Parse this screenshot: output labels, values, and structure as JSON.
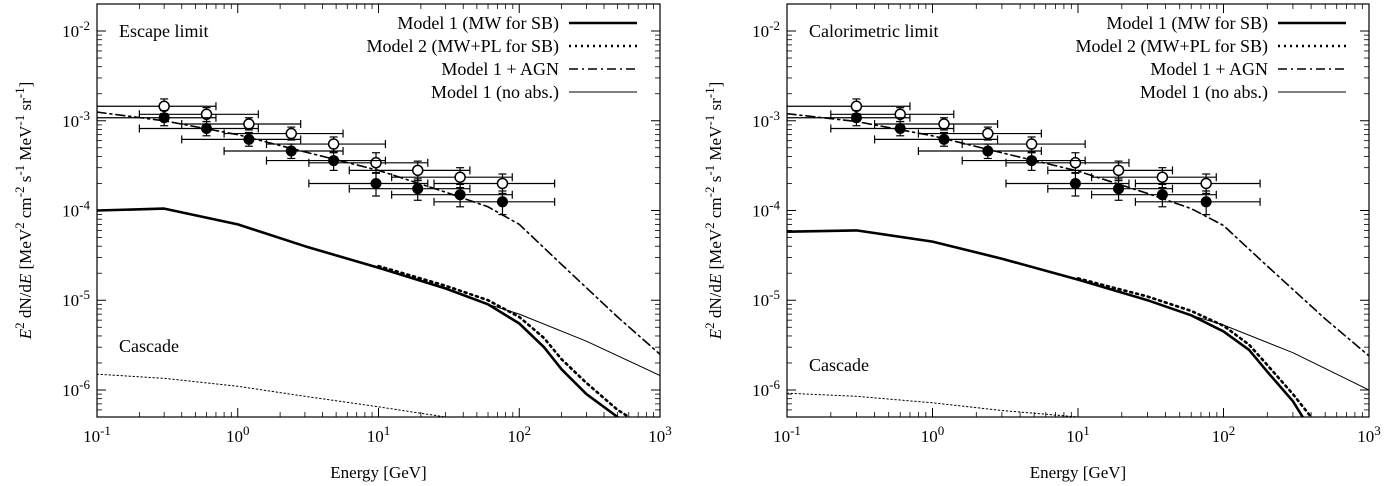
{
  "chart_data": [
    {
      "type": "line",
      "xscale": "log",
      "yscale": "log",
      "xlim": [
        0.1,
        1000
      ],
      "ylim": [
        5e-07,
        0.02
      ],
      "xlabel": "Energy [GeV]",
      "ylabel": "E2 dN/dE [MeV2 cm-2 s-1 MeV-1 sr-1]",
      "x_ticks": [
        "10-1",
        "100",
        "101",
        "102",
        "103"
      ],
      "y_ticks": [
        "10-6",
        "10-5",
        "10-4",
        "10-3",
        "10-2"
      ],
      "panel_label": "Escape limit",
      "cascade_label": "Cascade",
      "legend_position": "top-right",
      "series": [
        {
          "name": "Model 1 (MW for SB)",
          "style": "solid-thick",
          "x": [
            0.1,
            0.3,
            1,
            3,
            10,
            30,
            60,
            100,
            150,
            200,
            300,
            500
          ],
          "y": [
            0.0001,
            0.000105,
            7e-05,
            4e-05,
            2.3e-05,
            1.35e-05,
            9e-06,
            5.5e-06,
            3e-06,
            1.7e-06,
            9e-07,
            5e-07
          ]
        },
        {
          "name": "Model 2 (MW+PL for SB)",
          "style": "dotted-thick",
          "x": [
            10,
            30,
            60,
            100,
            150,
            200,
            300,
            500,
            600
          ],
          "y": [
            2.4e-05,
            1.45e-05,
            1e-05,
            6.5e-06,
            3.8e-06,
            2.2e-06,
            1.2e-06,
            6e-07,
            5e-07
          ]
        },
        {
          "name": "Model 1 + AGN",
          "style": "dash-dot",
          "x": [
            0.1,
            0.3,
            1,
            3,
            10,
            30,
            60,
            100,
            200,
            500,
            1000
          ],
          "y": [
            0.00125,
            0.001,
            0.0007,
            0.00045,
            0.00028,
            0.00016,
            0.00011,
            7e-05,
            2.5e-05,
            6.5e-06,
            2.5e-06
          ]
        },
        {
          "name": "Model 1 (no abs.)",
          "style": "solid-thin",
          "x": [
            10,
            30,
            60,
            100,
            300,
            1000
          ],
          "y": [
            2.3e-05,
            1.35e-05,
            9e-06,
            7e-06,
            3.5e-06,
            1.45e-06
          ]
        },
        {
          "name": "Cascade",
          "style": "dotted-thin",
          "legend": false,
          "x": [
            0.1,
            0.3,
            1,
            3,
            10,
            20,
            30
          ],
          "y": [
            1.5e-06,
            1.35e-06,
            1.1e-06,
            8.5e-07,
            6.5e-07,
            5.5e-07,
            5e-07
          ]
        }
      ],
      "data_points": [
        {
          "name": "open circles",
          "marker": "open-circle",
          "x": [
            0.3,
            0.6,
            1.2,
            2.4,
            4.8,
            9.6,
            19,
            38,
            76
          ],
          "y": [
            0.00145,
            0.00118,
            0.00092,
            0.00072,
            0.00055,
            0.00034,
            0.00028,
            0.000235,
            0.0002
          ],
          "err_low": [
            0.0012,
            0.00098,
            0.00079,
            0.00061,
            0.00045,
            0.000265,
            0.000215,
            0.00018,
            0.000155
          ],
          "err_high": [
            0.00175,
            0.0014,
            0.00108,
            0.00085,
            0.00066,
            0.00044,
            0.000355,
            0.0003,
            0.000255
          ],
          "xerr_low": [
            0.2,
            0.4,
            0.8,
            1.6,
            3.2,
            6.4,
            12.8,
            25.6,
            51.2
          ],
          "xerr_high": [
            0.4,
            0.8,
            1.6,
            3.2,
            6.4,
            12.8,
            25.6,
            51.2,
            102.4
          ]
        },
        {
          "name": "filled circles",
          "marker": "filled-circle",
          "x": [
            0.3,
            0.6,
            1.2,
            2.4,
            4.8,
            9.6,
            19,
            38,
            76
          ],
          "y": [
            0.00108,
            0.00082,
            0.00062,
            0.00046,
            0.00036,
            0.0002,
            0.000175,
            0.00015,
            0.000125
          ],
          "err_low": [
            0.00088,
            0.00068,
            0.00052,
            0.00038,
            0.00028,
            0.000145,
            0.00013,
            0.00011,
            9e-05
          ],
          "err_high": [
            0.0013,
            0.00098,
            0.00074,
            0.00055,
            0.00044,
            0.00026,
            0.000225,
            0.000195,
            0.000165
          ],
          "xerr_low": [
            0.2,
            0.4,
            0.8,
            1.6,
            3.2,
            6.4,
            12.8,
            25.6,
            51.2
          ],
          "xerr_high": [
            0.4,
            0.8,
            1.6,
            3.2,
            6.4,
            12.8,
            25.6,
            51.2,
            102.4
          ]
        }
      ]
    },
    {
      "type": "line",
      "xscale": "log",
      "yscale": "log",
      "xlim": [
        0.1,
        1000
      ],
      "ylim": [
        5e-07,
        0.02
      ],
      "xlabel": "Energy [GeV]",
      "ylabel": "E2 dN/dE [MeV2 cm-2 s-1 MeV-1 sr-1]",
      "x_ticks": [
        "10-1",
        "100",
        "101",
        "102",
        "103"
      ],
      "y_ticks": [
        "10-6",
        "10-5",
        "10-4",
        "10-3",
        "10-2"
      ],
      "panel_label": "Calorimetric limit",
      "cascade_label": "Cascade",
      "legend_position": "top-right",
      "series": [
        {
          "name": "Model 1 (MW for SB)",
          "style": "solid-thick",
          "x": [
            0.1,
            0.3,
            1,
            3,
            10,
            30,
            60,
            100,
            150,
            200,
            300,
            350
          ],
          "y": [
            5.8e-05,
            6e-05,
            4.5e-05,
            2.9e-05,
            1.7e-05,
            1e-05,
            6.8e-06,
            4.5e-06,
            2.8e-06,
            1.6e-06,
            7.5e-07,
            5e-07
          ]
        },
        {
          "name": "Model 2 (MW+PL for SB)",
          "style": "dotted-thick",
          "x": [
            10,
            30,
            60,
            100,
            150,
            200,
            300,
            400
          ],
          "y": [
            1.75e-05,
            1.1e-05,
            7.6e-06,
            5.2e-06,
            3.2e-06,
            1.9e-06,
            9e-07,
            5e-07
          ]
        },
        {
          "name": "Model 1 + AGN",
          "style": "dash-dot",
          "x": [
            0.1,
            0.3,
            1,
            3,
            10,
            30,
            60,
            100,
            200,
            500,
            1000
          ],
          "y": [
            0.0012,
            0.00098,
            0.00068,
            0.00044,
            0.000275,
            0.000155,
            0.000105,
            6.8e-05,
            2.4e-05,
            6.2e-06,
            2.4e-06
          ]
        },
        {
          "name": "Model 1 (no abs.)",
          "style": "solid-thin",
          "x": [
            10,
            30,
            60,
            100,
            300,
            1000
          ],
          "y": [
            1.7e-05,
            1e-05,
            6.8e-06,
            5.3e-06,
            2.6e-06,
            1e-06
          ]
        },
        {
          "name": "Cascade",
          "style": "dotted-thin",
          "legend": false,
          "x": [
            0.1,
            0.3,
            1,
            3,
            10
          ],
          "y": [
            9.2e-07,
            8.5e-07,
            7.2e-07,
            5.9e-07,
            5e-07
          ]
        }
      ],
      "data_points": [
        {
          "name": "open circles",
          "marker": "open-circle",
          "x": [
            0.3,
            0.6,
            1.2,
            2.4,
            4.8,
            9.6,
            19,
            38,
            76
          ],
          "y": [
            0.00145,
            0.00118,
            0.00092,
            0.00072,
            0.00055,
            0.00034,
            0.00028,
            0.000235,
            0.0002
          ],
          "err_low": [
            0.0012,
            0.00098,
            0.00079,
            0.00061,
            0.00045,
            0.000265,
            0.000215,
            0.00018,
            0.000155
          ],
          "err_high": [
            0.00175,
            0.0014,
            0.00108,
            0.00085,
            0.00066,
            0.00044,
            0.000355,
            0.0003,
            0.000255
          ],
          "xerr_low": [
            0.2,
            0.4,
            0.8,
            1.6,
            3.2,
            6.4,
            12.8,
            25.6,
            51.2
          ],
          "xerr_high": [
            0.4,
            0.8,
            1.6,
            3.2,
            6.4,
            12.8,
            25.6,
            51.2,
            102.4
          ]
        },
        {
          "name": "filled circles",
          "marker": "filled-circle",
          "x": [
            0.3,
            0.6,
            1.2,
            2.4,
            4.8,
            9.6,
            19,
            38,
            76
          ],
          "y": [
            0.00108,
            0.00082,
            0.00062,
            0.00046,
            0.00036,
            0.0002,
            0.000175,
            0.00015,
            0.000125
          ],
          "err_low": [
            0.00088,
            0.00068,
            0.00052,
            0.00038,
            0.00028,
            0.000145,
            0.00013,
            0.00011,
            9e-05
          ],
          "err_high": [
            0.0013,
            0.00098,
            0.00074,
            0.00055,
            0.00044,
            0.00026,
            0.000225,
            0.000195,
            0.000165
          ],
          "xerr_low": [
            0.2,
            0.4,
            0.8,
            1.6,
            3.2,
            6.4,
            12.8,
            25.6,
            51.2
          ],
          "xerr_high": [
            0.4,
            0.8,
            1.6,
            3.2,
            6.4,
            12.8,
            25.6,
            51.2,
            102.4
          ]
        }
      ]
    }
  ]
}
